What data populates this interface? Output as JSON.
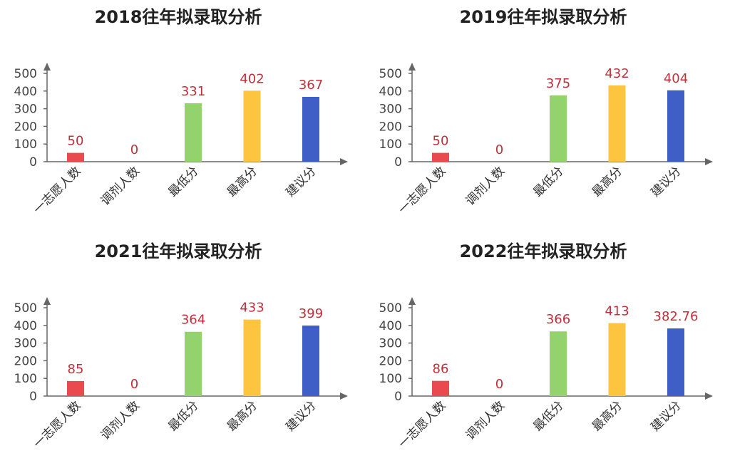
{
  "colors": {
    "bars": [
      "#e84a4f",
      "#ef4545",
      "#92d36e",
      "#fdc43f",
      "#3f5fc6"
    ],
    "axis": "#666666",
    "value_label": "#c0303a"
  },
  "chart_data": [
    {
      "type": "bar",
      "title": "2018往年拟录取分析",
      "categories": [
        "一志愿人数",
        "调剂人数",
        "最低分",
        "最高分",
        "建议分"
      ],
      "values": [
        50,
        0,
        331,
        402,
        367
      ],
      "value_labels": [
        "50",
        "0",
        "331",
        "402",
        "367"
      ],
      "yticks": [
        "0",
        "100",
        "200",
        "300",
        "400",
        "500"
      ],
      "ylim": [
        0,
        500
      ],
      "xlabel": "",
      "ylabel": "",
      "grid": false,
      "legend": "none"
    },
    {
      "type": "bar",
      "title": "2019往年拟录取分析",
      "categories": [
        "一志愿人数",
        "调剂人数",
        "最低分",
        "最高分",
        "建议分"
      ],
      "values": [
        50,
        0,
        375,
        432,
        404
      ],
      "value_labels": [
        "50",
        "0",
        "375",
        "432",
        "404"
      ],
      "yticks": [
        "0",
        "100",
        "200",
        "300",
        "400",
        "500"
      ],
      "ylim": [
        0,
        500
      ],
      "xlabel": "",
      "ylabel": "",
      "grid": false,
      "legend": "none"
    },
    {
      "type": "bar",
      "title": "2021往年拟录取分析",
      "categories": [
        "一志愿人数",
        "调剂人数",
        "最低分",
        "最高分",
        "建议分"
      ],
      "values": [
        85,
        0,
        364,
        433,
        399
      ],
      "value_labels": [
        "85",
        "0",
        "364",
        "433",
        "399"
      ],
      "yticks": [
        "0",
        "100",
        "200",
        "300",
        "400",
        "500"
      ],
      "ylim": [
        0,
        500
      ],
      "xlabel": "",
      "ylabel": "",
      "grid": false,
      "legend": "none"
    },
    {
      "type": "bar",
      "title": "2022往年拟录取分析",
      "categories": [
        "一志愿人数",
        "调剂人数",
        "最低分",
        "最高分",
        "建议分"
      ],
      "values": [
        86,
        0,
        366,
        413,
        382.76
      ],
      "value_labels": [
        "86",
        "0",
        "366",
        "413",
        "382.76"
      ],
      "yticks": [
        "0",
        "100",
        "200",
        "300",
        "400",
        "500"
      ],
      "ylim": [
        0,
        500
      ],
      "xlabel": "",
      "ylabel": "",
      "grid": false,
      "legend": "none"
    }
  ]
}
